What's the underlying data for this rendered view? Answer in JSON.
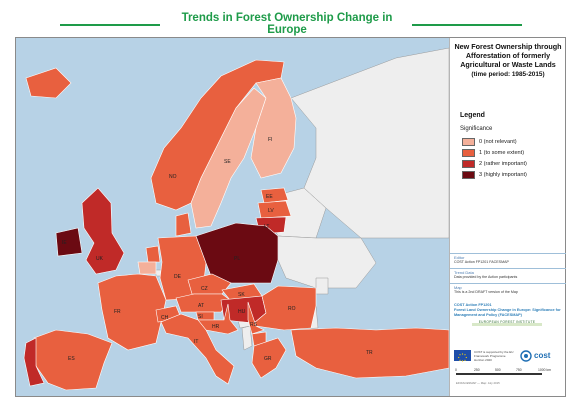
{
  "header": {
    "title": "Trends in Forest Ownership Change in Europe"
  },
  "side_panel": {
    "title": "New Forest Ownership through Afforestation of formerly Agricultural or Waste Lands",
    "period": "(time period: 1985-2015)"
  },
  "legend": {
    "heading": "Legend",
    "subheading": "Significance",
    "items": [
      {
        "label": "0 (not relevant)",
        "color": "#f4b09a"
      },
      {
        "label": "1 (to some extent)",
        "color": "#e8603f"
      },
      {
        "label": "2 (rather important)",
        "color": "#c02a28"
      },
      {
        "label": "3 (highly important)",
        "color": "#6b0a12"
      }
    ]
  },
  "meta": [
    {
      "key": "Editor",
      "value": "COST Action FP1201 FACESMAP"
    },
    {
      "key": "Trend Data",
      "value": "Data provided by the Action participants"
    },
    {
      "key": "Map",
      "value": "This is a 2nd DRAFT version of the Map"
    }
  ],
  "cost_action": {
    "code": "COST Action FP1201",
    "name": "Forest Land Ownership Change in Europe: Significance for Management and Policy (FACESMAP)"
  },
  "logos": {
    "efi": "EUROPEAN FOREST INSTITUTE",
    "eu_note": "COST is supported by the EU Framework Programme Horizon 2020",
    "cost": "cost"
  },
  "scalebar": {
    "ticks": [
      "0",
      "250",
      "500",
      "750",
      "1000 km"
    ]
  },
  "footer_note": "EFI/FACESMAP — Map: July 2015",
  "map": {
    "sea_color": "#b7d2e6",
    "no_data_color": "#eeeeee",
    "countries": [
      {
        "code": "SE",
        "level": 0
      },
      {
        "code": "FI",
        "level": 0
      },
      {
        "code": "NO",
        "level": 1
      },
      {
        "code": "EE",
        "level": 1
      },
      {
        "code": "LV",
        "level": 1
      },
      {
        "code": "LT",
        "level": 2
      },
      {
        "code": "UK",
        "level": 2
      },
      {
        "code": "IE",
        "level": 3
      },
      {
        "code": "IS",
        "level": 1
      },
      {
        "code": "DK",
        "level": 1
      },
      {
        "code": "NL",
        "level": 1
      },
      {
        "code": "BE",
        "level": 0
      },
      {
        "code": "DE",
        "level": 1
      },
      {
        "code": "PL",
        "level": 3
      },
      {
        "code": "CZ",
        "level": 1
      },
      {
        "code": "SK",
        "level": 1
      },
      {
        "code": "AT",
        "level": 1
      },
      {
        "code": "HU",
        "level": 2
      },
      {
        "code": "RO",
        "level": 1
      },
      {
        "code": "SI",
        "level": 1
      },
      {
        "code": "HR",
        "level": 1
      },
      {
        "code": "RS",
        "level": 1
      },
      {
        "code": "MK",
        "level": 1
      },
      {
        "code": "FR",
        "level": 1
      },
      {
        "code": "CH",
        "level": 1
      },
      {
        "code": "IT",
        "level": 1
      },
      {
        "code": "ES",
        "level": 1
      },
      {
        "code": "PT",
        "level": 2
      },
      {
        "code": "GR",
        "level": 1
      },
      {
        "code": "TR",
        "level": 1
      }
    ]
  }
}
